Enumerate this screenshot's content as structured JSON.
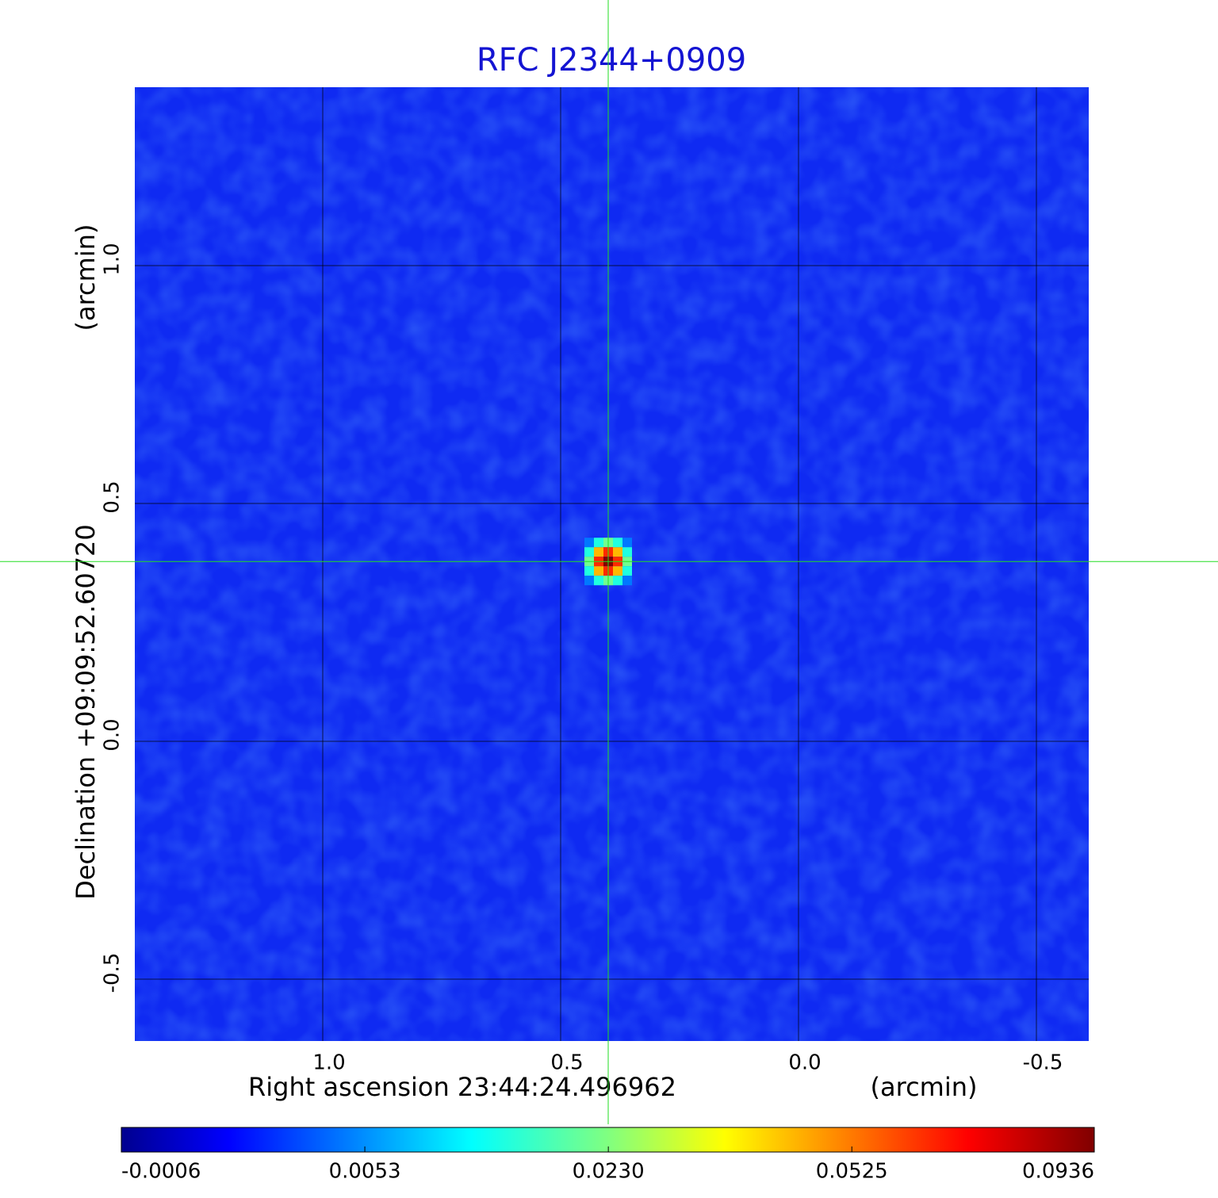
{
  "chart_data": {
    "type": "image",
    "title": "RFC J2344+0909",
    "xlabel": "Right ascension  23:44:24.496962",
    "xunit": "(arcmin)",
    "ylabel": "Declination  +09:09:52.60720",
    "yunit": "(arcmin)",
    "xlim": [
      1.395,
      -0.61
    ],
    "ylim": [
      -0.63,
      1.375
    ],
    "xticks": [
      {
        "value": 1,
        "label": "1.0"
      },
      {
        "value": 0.5,
        "label": "0.5"
      },
      {
        "value": 0,
        "label": "0.0"
      },
      {
        "value": -0.5,
        "label": "-0.5"
      }
    ],
    "yticks": [
      {
        "value": 1,
        "label": "1.0"
      },
      {
        "value": 0.5,
        "label": "0.5"
      },
      {
        "value": 0,
        "label": "0.0"
      },
      {
        "value": -0.5,
        "label": "-0.5"
      }
    ],
    "grid": true,
    "colormap": "jet",
    "colorbar_scale": "sqrt",
    "clim": [
      -0.0006,
      0.0936
    ],
    "colorbar_ticks": [
      -0.0006,
      0.0053,
      {
        "value": 0.023,
        "label": "0.0230"
      },
      0.0525,
      0.0936
    ],
    "source": {
      "x": 0.4,
      "y": 0.378,
      "peak": 0.0936
    }
  }
}
